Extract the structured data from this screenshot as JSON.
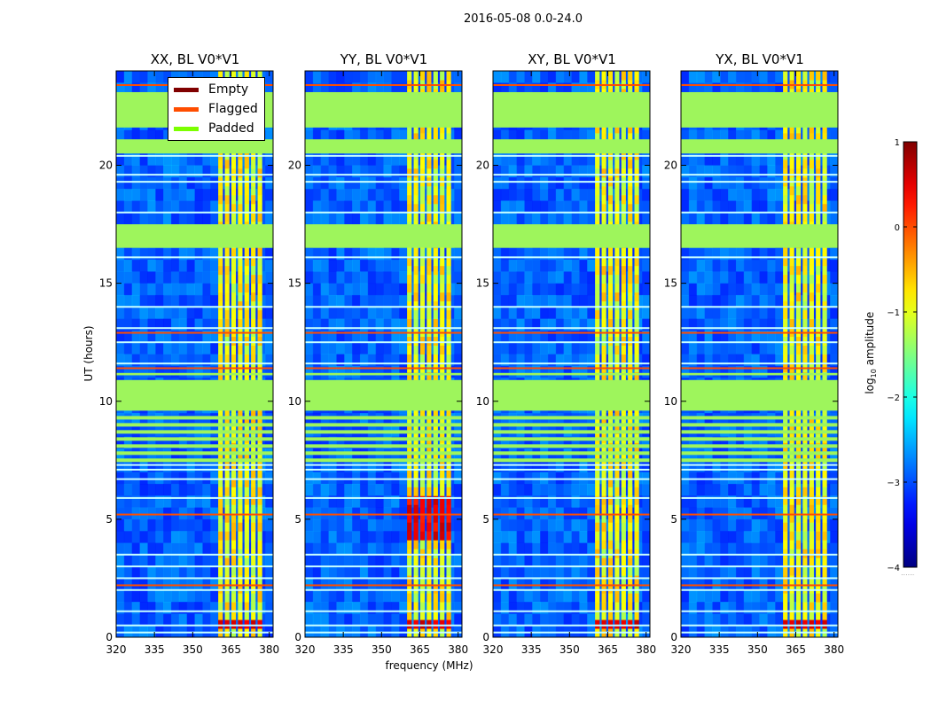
{
  "figure": {
    "suptitle": "2016-05-08 0.0-24.0",
    "xlabel": "frequency (MHz)",
    "ylabel": "UT (hours)"
  },
  "panels": [
    {
      "title": "XX, BL V0*V1"
    },
    {
      "title": "YY, BL V0*V1"
    },
    {
      "title": "XY, BL V0*V1"
    },
    {
      "title": "YX, BL V0*V1"
    }
  ],
  "legend": [
    {
      "label": "Empty",
      "color": "#800000"
    },
    {
      "label": "Flagged",
      "color": "#ff4d00"
    },
    {
      "label": "Padded",
      "color": "#7cff00"
    }
  ],
  "colorbar": {
    "label": "log10 amplitude",
    "label_base": "log",
    "label_sub": "10",
    "label_rest": " amplitude",
    "ticks": [
      1,
      0,
      -1,
      -2,
      -3,
      -4
    ],
    "tick_labels": [
      "1",
      "0",
      "−1",
      "−2",
      "−3",
      "−4"
    ],
    "range": [
      -4,
      1
    ],
    "cmap": "jet",
    "dots": "......"
  },
  "chart_data": {
    "type": "heatmap",
    "title": "2016-05-08 0.0-24.0",
    "xlabel": "frequency (MHz)",
    "ylabel": "UT (hours)",
    "xlim": [
      320,
      381.5
    ],
    "ylim": [
      0,
      24
    ],
    "xticks": [
      320,
      335,
      350,
      365,
      380
    ],
    "yticks": [
      0,
      5,
      10,
      15,
      20
    ],
    "series": [
      {
        "name": "XX, BL V0*V1"
      },
      {
        "name": "YY, BL V0*V1"
      },
      {
        "name": "XY, BL V0*V1"
      },
      {
        "name": "YX, BL V0*V1"
      }
    ],
    "padded_time_bands": [
      [
        9.6,
        10.9
      ],
      [
        11.1,
        11.2
      ],
      [
        16.5,
        17.5
      ],
      [
        20.5,
        21.1
      ],
      [
        21.6,
        23.1
      ]
    ],
    "bright_frequency_range": [
      360,
      378
    ],
    "amplitude_range_log10": [
      -4,
      1
    ]
  }
}
